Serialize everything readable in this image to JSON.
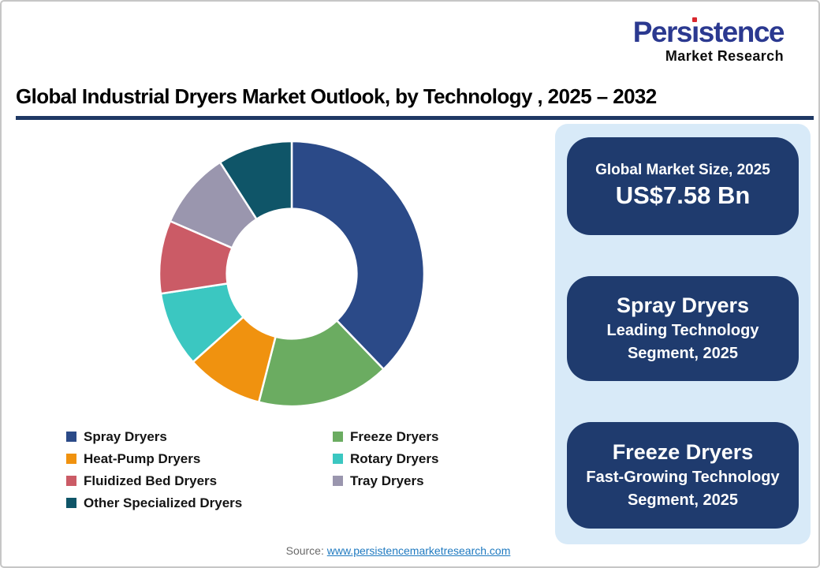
{
  "logo": {
    "brand": "Persistence",
    "tagline": "Market Research",
    "brand_color": "#2B3990",
    "dot_color": "#D9272E"
  },
  "title": "Global Industrial Dryers Market Outlook, by Technology , 2025 – 2032",
  "title_underline_color": "#1F3864",
  "chart_data": {
    "type": "pie",
    "subtype": "donut",
    "title": "Global Industrial Dryers Market Outlook, by Technology, 2025 – 2032",
    "start_angle_deg": 0,
    "direction": "clockwise",
    "inner_radius_ratio": 0.49,
    "legend_position": "bottom-left, two columns",
    "segments": [
      {
        "label": "Spray Dryers",
        "value_pct": 37.8,
        "color": "#2B4A88"
      },
      {
        "label": "Freeze Dryers",
        "value_pct": 16.2,
        "color": "#6BAC61"
      },
      {
        "label": "Heat-Pump Dryers",
        "value_pct": 9.4,
        "color": "#F0920F"
      },
      {
        "label": "Rotary Dryers",
        "value_pct": 9.2,
        "color": "#3BC7C1"
      },
      {
        "label": "Fluidized Bed Dryers",
        "value_pct": 8.9,
        "color": "#CB5B66"
      },
      {
        "label": "Tray Dryers",
        "value_pct": 9.4,
        "color": "#9A96AE"
      },
      {
        "label": "Other Specialized Dryers",
        "value_pct": 9.1,
        "color": "#0F5568"
      }
    ]
  },
  "info_panel": {
    "background_color": "#D8EAF8",
    "card_color": "#1F3B6E",
    "cards": [
      {
        "title": "Global Market Size, 2025",
        "value": "US$7.58 Bn"
      },
      {
        "title": "Spray Dryers",
        "subtitle": "Leading Technology Segment, 2025"
      },
      {
        "title": "Freeze Dryers",
        "subtitle": "Fast-Growing Technology Segment, 2025"
      }
    ]
  },
  "source": {
    "label": "Source: ",
    "link": "www.persistencemarketresearch.com"
  }
}
